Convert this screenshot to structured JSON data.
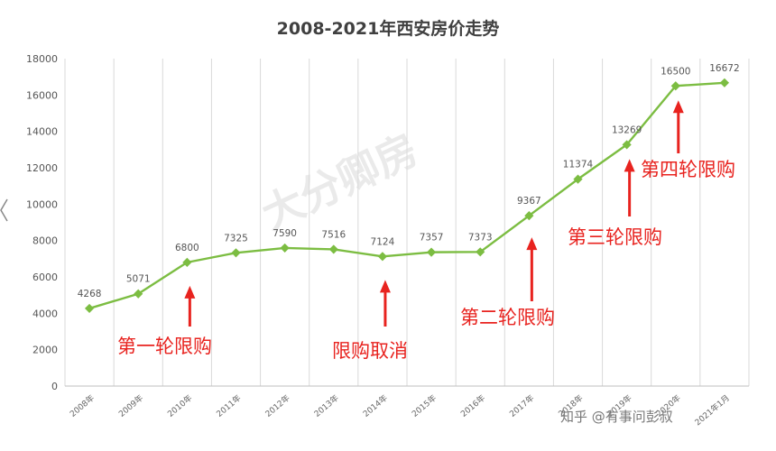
{
  "chart_data": {
    "type": "line",
    "title": "2008-2021年西安房价走势",
    "categories": [
      "2008年",
      "2009年",
      "2010年",
      "2011年",
      "2012年",
      "2013年",
      "2014年",
      "2015年",
      "2016年",
      "2017年",
      "2018年",
      "2019年",
      "2020年",
      "2021年1月"
    ],
    "series": [
      {
        "values": [
          4268,
          5071,
          6800,
          7325,
          7590,
          7516,
          7124,
          7357,
          7373,
          9367,
          11374,
          13269,
          16500,
          16672
        ]
      }
    ],
    "ylim": [
      0,
      18000
    ],
    "yticks": [
      0,
      2000,
      4000,
      6000,
      8000,
      10000,
      12000,
      14000,
      16000,
      18000
    ],
    "grid": "vertical",
    "data_labels": true,
    "line_color": "#7cbd42",
    "annotations": [
      {
        "text": "第一轮限购",
        "category": "2010年"
      },
      {
        "text": "限购取消",
        "category": "2014年"
      },
      {
        "text": "第二轮限购",
        "category": "2017年"
      },
      {
        "text": "第三轮限购",
        "category": "2019年"
      },
      {
        "text": "第四轮限购",
        "category": "2020年"
      }
    ],
    "annotation_color": "#e8231f"
  },
  "watermark": {
    "text": "知乎 @有事问彭叔",
    "background_text": "大分卿房"
  }
}
